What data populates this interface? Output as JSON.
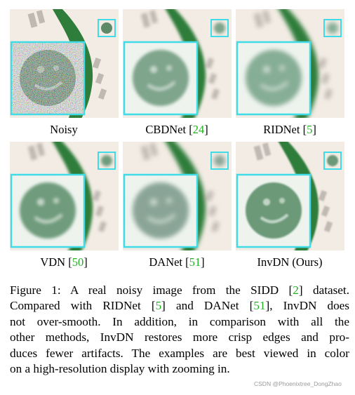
{
  "figure": {
    "panels": [
      {
        "label": "Noisy",
        "ref": ""
      },
      {
        "label": "CBDNet",
        "ref": "24"
      },
      {
        "label": "RIDNet",
        "ref": "5"
      },
      {
        "label": "VDN",
        "ref": "50"
      },
      {
        "label": "DANet",
        "ref": "51"
      },
      {
        "label": "InvDN (Ours)",
        "ref": ""
      }
    ],
    "colors": {
      "highlight_box": "#3fdce8",
      "reference_link": "#22b022",
      "stroke_green": "#2e7d3a",
      "background_paper": "#f3ece4"
    }
  },
  "caption": {
    "l1a": "Figure 1: A real noisy image from the SIDD [",
    "l1r": "2",
    "l1b": "] dataset.",
    "l2a": "Compared with RIDNet [",
    "l2r1": "5",
    "l2b": "] and DANet [",
    "l2r2": "51",
    "l2c": "], InvDN does",
    "l3": "not over-smooth.  In addition, in comparison with all the",
    "l4": "other methods, InvDN restores more crisp edges and pro-",
    "l5": "duces fewer artifacts. The examples are best viewed in color",
    "l6": "on a high-resolution display with zooming in."
  },
  "watermark": "CSDN @Phoenixtree_DongZhao"
}
